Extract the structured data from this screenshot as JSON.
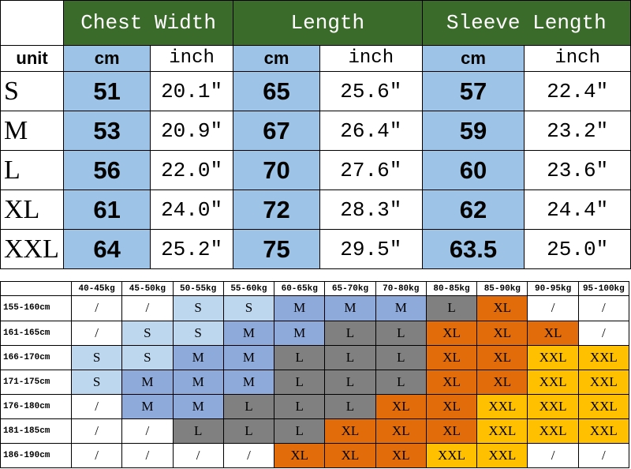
{
  "size_table": {
    "headers": [
      "Chest Width",
      "Length",
      "Sleeve Length"
    ],
    "unit_label": "unit",
    "units": [
      "cm",
      "inch",
      "cm",
      "inch",
      "cm",
      "inch"
    ],
    "rows": [
      {
        "size": "S",
        "values": [
          "51",
          "20.1\"",
          "65",
          "25.6\"",
          "57",
          "22.4\""
        ]
      },
      {
        "size": "M",
        "values": [
          "53",
          "20.9\"",
          "67",
          "26.4\"",
          "59",
          "23.2\""
        ]
      },
      {
        "size": "L",
        "values": [
          "56",
          "22.0\"",
          "70",
          "27.6\"",
          "60",
          "23.6\""
        ]
      },
      {
        "size": "XL",
        "values": [
          "61",
          "24.0\"",
          "72",
          "28.3\"",
          "62",
          "24.4\""
        ]
      },
      {
        "size": "XXL",
        "values": [
          "64",
          "25.2\"",
          "75",
          "29.5\"",
          "63.5",
          "25.0\""
        ]
      }
    ]
  },
  "fit_table": {
    "weights": [
      "40-45kg",
      "45-50kg",
      "50-55kg",
      "55-60kg",
      "60-65kg",
      "65-70kg",
      "70-80kg",
      "80-85kg",
      "85-90kg",
      "90-95kg",
      "95-100kg"
    ],
    "size_colors": {
      "S": "#bdd7ee",
      "M": "#8eaadb",
      "L": "#808080",
      "XL": "#e36c0a",
      "XXL": "#ffc000",
      "/": "#ffffff"
    },
    "rows": [
      {
        "height": "155-160cm",
        "cells": [
          "/",
          "/",
          "S",
          "S",
          "M",
          "M",
          "M",
          "L",
          "XL",
          "/",
          "/"
        ]
      },
      {
        "height": "161-165cm",
        "cells": [
          "/",
          "S",
          "S",
          "M",
          "M",
          "L",
          "L",
          "XL",
          "XL",
          "XL",
          "/"
        ]
      },
      {
        "height": "166-170cm",
        "cells": [
          "S",
          "S",
          "M",
          "M",
          "L",
          "L",
          "L",
          "XL",
          "XL",
          "XXL",
          "XXL"
        ]
      },
      {
        "height": "171-175cm",
        "cells": [
          "S",
          "M",
          "M",
          "M",
          "L",
          "L",
          "L",
          "XL",
          "XL",
          "XXL",
          "XXL"
        ]
      },
      {
        "height": "176-180cm",
        "cells": [
          "/",
          "M",
          "M",
          "L",
          "L",
          "L",
          "XL",
          "XL",
          "XXL",
          "XXL",
          "XXL"
        ]
      },
      {
        "height": "181-185cm",
        "cells": [
          "/",
          "/",
          "L",
          "L",
          "L",
          "XL",
          "XL",
          "XL",
          "XXL",
          "XXL",
          "XXL"
        ]
      },
      {
        "height": "186-190cm",
        "cells": [
          "/",
          "/",
          "/",
          "/",
          "XL",
          "XL",
          "XL",
          "XXL",
          "XXL",
          "/",
          "/"
        ]
      }
    ]
  }
}
